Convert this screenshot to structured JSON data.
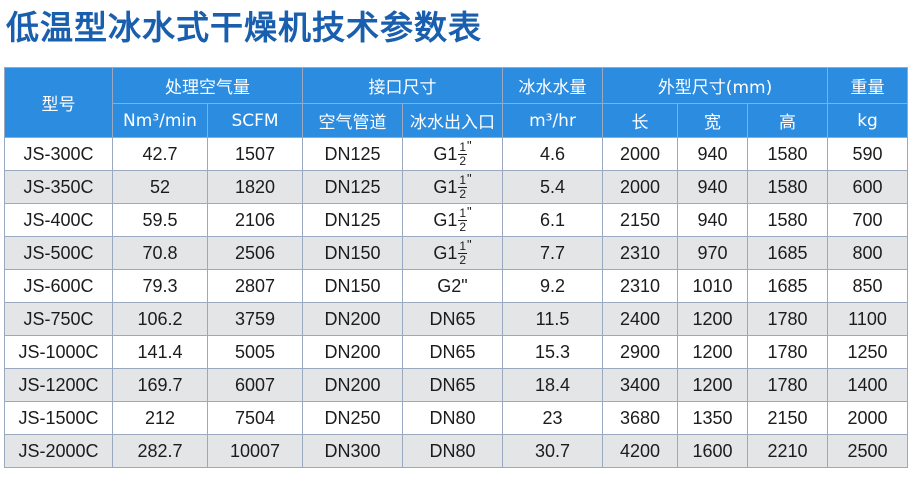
{
  "title": "低温型冰水式干燥机技术参数表",
  "header": {
    "model": "型号",
    "air_capacity": "处理空气量",
    "connection_size": "接口尺寸",
    "chilled_water": "冰水水量",
    "dimensions": "外型尺寸(mm)",
    "weight": "重量",
    "nm3_min": "Nm³/min",
    "scfm": "SCFM",
    "air_pipe": "空气管道",
    "water_io": "冰水出入口",
    "m3_hr": "m³/hr",
    "length": "长",
    "width": "宽",
    "height": "高",
    "kg": "kg"
  },
  "rows": [
    {
      "model": "JS-300C",
      "nm3": "42.7",
      "scfm": "1507",
      "air_pipe": "DN125",
      "water_io": {
        "whole": "G1",
        "num": "1",
        "den": "2",
        "mark": "\""
      },
      "water": "4.6",
      "length": "2000",
      "width": "940",
      "height": "1580",
      "weight": "590"
    },
    {
      "model": "JS-350C",
      "nm3": "52",
      "scfm": "1820",
      "air_pipe": "DN125",
      "water_io": {
        "whole": "G1",
        "num": "1",
        "den": "2",
        "mark": "\""
      },
      "water": "5.4",
      "length": "2000",
      "width": "940",
      "height": "1580",
      "weight": "600"
    },
    {
      "model": "JS-400C",
      "nm3": "59.5",
      "scfm": "2106",
      "air_pipe": "DN125",
      "water_io": {
        "whole": "G1",
        "num": "1",
        "den": "2",
        "mark": "\""
      },
      "water": "6.1",
      "length": "2150",
      "width": "940",
      "height": "1580",
      "weight": "700"
    },
    {
      "model": "JS-500C",
      "nm3": "70.8",
      "scfm": "2506",
      "air_pipe": "DN150",
      "water_io": {
        "whole": "G1",
        "num": "1",
        "den": "2",
        "mark": "\""
      },
      "water": "7.7",
      "length": "2310",
      "width": "970",
      "height": "1685",
      "weight": "800"
    },
    {
      "model": "JS-600C",
      "nm3": "79.3",
      "scfm": "2807",
      "air_pipe": "DN150",
      "water_io": {
        "text": "G2\""
      },
      "water": "9.2",
      "length": "2310",
      "width": "1010",
      "height": "1685",
      "weight": "850"
    },
    {
      "model": "JS-750C",
      "nm3": "106.2",
      "scfm": "3759",
      "air_pipe": "DN200",
      "water_io": {
        "text": "DN65"
      },
      "water": "11.5",
      "length": "2400",
      "width": "1200",
      "height": "1780",
      "weight": "1100"
    },
    {
      "model": "JS-1000C",
      "nm3": "141.4",
      "scfm": "5005",
      "air_pipe": "DN200",
      "water_io": {
        "text": "DN65"
      },
      "water": "15.3",
      "length": "2900",
      "width": "1200",
      "height": "1780",
      "weight": "1250"
    },
    {
      "model": "JS-1200C",
      "nm3": "169.7",
      "scfm": "6007",
      "air_pipe": "DN200",
      "water_io": {
        "text": "DN65"
      },
      "water": "18.4",
      "length": "3400",
      "width": "1200",
      "height": "1780",
      "weight": "1400"
    },
    {
      "model": "JS-1500C",
      "nm3": "212",
      "scfm": "7504",
      "air_pipe": "DN250",
      "water_io": {
        "text": "DN80"
      },
      "water": "23",
      "length": "3680",
      "width": "1350",
      "height": "2150",
      "weight": "2000"
    },
    {
      "model": "JS-2000C",
      "nm3": "282.7",
      "scfm": "10007",
      "air_pipe": "DN300",
      "water_io": {
        "text": "DN80"
      },
      "water": "30.7",
      "length": "4200",
      "width": "1600",
      "height": "2210",
      "weight": "2500"
    }
  ],
  "colors": {
    "title": "#1a5fae",
    "header_bg": "#2b8ce0",
    "header_text": "#ffffff",
    "row_alt_bg": "#e4e5e7",
    "border": "#9aa9bf"
  }
}
